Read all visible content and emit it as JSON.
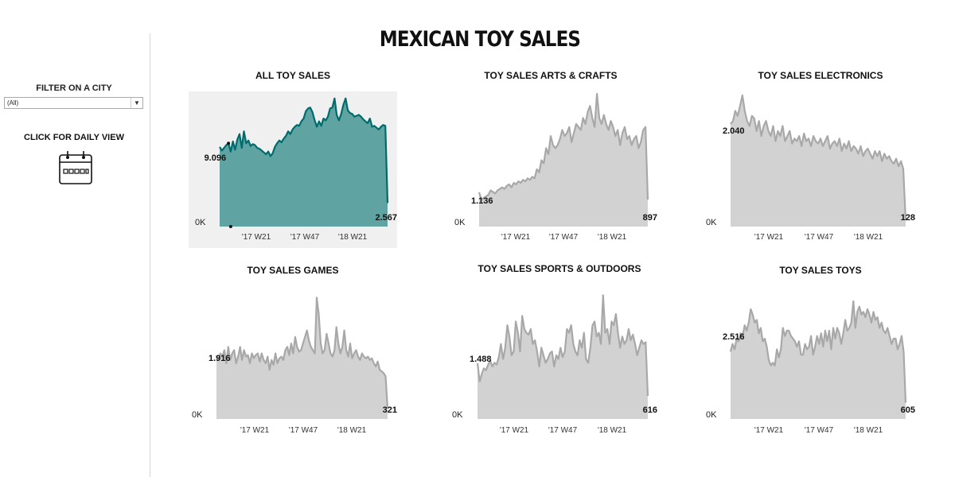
{
  "title": "MEXICAN TOY SALES",
  "sidebar": {
    "filter_title": "FILTER ON A CITY",
    "filter_value": "(All)",
    "daily_view_label": "CLICK FOR DAILY VIEW",
    "calendar_icon": "calendar-icon"
  },
  "colors": {
    "highlight_fill": "#5fa3a2",
    "highlight_line": "#006b6b",
    "muted_fill": "#d2d2d2",
    "muted_line": "#a8a8a8",
    "panel_bg": "#f0f0f0"
  },
  "chart_data": [
    {
      "type": "area",
      "title": "ALL TOY SALES",
      "highlighted": true,
      "x_ticks": [
        "'17 W21",
        "'17 W47",
        "'18 W21"
      ],
      "y_min_label": "0K",
      "start_label": "9.096",
      "end_label": "2.567",
      "ylim": [
        0,
        14500
      ],
      "values": [
        8700,
        8300,
        8600,
        8900,
        9096,
        8200,
        9300,
        8400,
        9500,
        10100,
        8600,
        10400,
        9100,
        9400,
        8800,
        9000,
        8900,
        8600,
        8500,
        8300,
        8100,
        7900,
        8200,
        7700,
        8000,
        8700,
        9100,
        9400,
        9200,
        9600,
        9900,
        10400,
        10100,
        10600,
        10900,
        11100,
        11000,
        11500,
        11800,
        12600,
        12900,
        13000,
        12500,
        11600,
        10900,
        11500,
        11000,
        11800,
        11600,
        12000,
        12900,
        13000,
        14000,
        12200,
        11600,
        12300,
        13300,
        14000,
        12700,
        12400,
        12300,
        12000,
        12100,
        12200,
        12000,
        11700,
        11500,
        11300,
        11800,
        10900,
        11000,
        10800,
        10600,
        10900,
        11100,
        11000,
        2567
      ]
    },
    {
      "type": "area",
      "title": "TOY SALES ARTS & CRAFTS",
      "x_ticks": [
        "'17 W21",
        "'17 W47",
        "'18 W21"
      ],
      "y_min_label": "0K",
      "start_label": "1.136",
      "end_label": "897",
      "ylim": [
        0,
        4400
      ],
      "values": [
        1136,
        900,
        950,
        1000,
        1050,
        1200,
        1150,
        1100,
        1200,
        1250,
        1300,
        1250,
        1350,
        1400,
        1300,
        1450,
        1400,
        1500,
        1450,
        1550,
        1500,
        1600,
        1550,
        1650,
        1600,
        1900,
        1800,
        2200,
        2100,
        2600,
        2400,
        3000,
        2700,
        2600,
        2700,
        2900,
        3200,
        3000,
        3100,
        3300,
        2800,
        3100,
        3400,
        3300,
        3200,
        3600,
        3400,
        3800,
        4000,
        3600,
        3300,
        4400,
        3600,
        3400,
        3700,
        3400,
        3200,
        3500,
        3300,
        3000,
        3200,
        2700,
        3100,
        3300,
        2900,
        3000,
        2700,
        2900,
        3000,
        2600,
        2800,
        3200,
        3300,
        897
      ]
    },
    {
      "type": "area",
      "title": "TOY SALES ELECTRONICS",
      "x_ticks": [
        "'17 W21",
        "'17 W47",
        "'18 W21"
      ],
      "y_min_label": "0K",
      "start_label": "2.040",
      "end_label": "128",
      "ylim": [
        0,
        2640
      ],
      "values": [
        2040,
        2100,
        2300,
        2200,
        2400,
        2610,
        2300,
        2100,
        2000,
        2200,
        2150,
        1900,
        2100,
        1800,
        2000,
        2100,
        1900,
        1800,
        2000,
        1700,
        1900,
        1800,
        2000,
        1700,
        1800,
        1900,
        1650,
        1750,
        1700,
        1800,
        1600,
        1850,
        1700,
        1750,
        1600,
        1800,
        1700,
        1650,
        1750,
        1600,
        1700,
        1800,
        1550,
        1650,
        1700,
        1600,
        1750,
        1500,
        1650,
        1550,
        1700,
        1500,
        1600,
        1550,
        1450,
        1600,
        1400,
        1500,
        1550,
        1450,
        1350,
        1500,
        1400,
        1500,
        1300,
        1450,
        1350,
        1400,
        1300,
        1250,
        1350,
        1200,
        1300,
        1150,
        128
      ]
    },
    {
      "type": "area",
      "title": "TOY SALES GAMES",
      "x_ticks": [
        "'17 W21",
        "'17 W47",
        "'18 W21"
      ],
      "y_min_label": "0K",
      "start_label": "1.916",
      "end_label": "321",
      "ylim": [
        0,
        4000
      ],
      "values": [
        1916,
        1800,
        2000,
        1900,
        2100,
        1700,
        2200,
        1800,
        2000,
        2100,
        1700,
        1900,
        2200,
        1800,
        2100,
        1900,
        1950,
        1700,
        2000,
        1850,
        1950,
        2000,
        1750,
        2000,
        1800,
        1700,
        1900,
        1500,
        1800,
        1650,
        2000,
        1700,
        1850,
        1900,
        1800,
        2100,
        2200,
        1950,
        2300,
        2000,
        2500,
        2200,
        2050,
        2100,
        2300,
        2500,
        2700,
        2400,
        2200,
        2100,
        2000,
        3700,
        3200,
        2300,
        2000,
        2100,
        2600,
        2300,
        2000,
        1900,
        2100,
        2800,
        2300,
        2000,
        2200,
        2700,
        2100,
        1900,
        2300,
        1850,
        2000,
        2100,
        1900,
        1800,
        2000,
        1900,
        1850,
        1900,
        1800,
        1850,
        1700,
        1600,
        1750,
        1500,
        1450,
        1400,
        1300,
        321
      ]
    },
    {
      "type": "area",
      "title": "TOY SALES SPORTS & OUTDOORS",
      "x_ticks": [
        "'17 W21",
        "'17 W47",
        "'18 W21"
      ],
      "y_min_label": "0K",
      "start_label": "1.488",
      "end_label": "616",
      "ylim": [
        0,
        3500
      ],
      "values": [
        1488,
        1000,
        1200,
        1350,
        1300,
        1450,
        1550,
        1400,
        1500,
        1450,
        1650,
        2000,
        1600,
        1900,
        2500,
        2200,
        1700,
        1800,
        2600,
        2300,
        1800,
        2750,
        2400,
        2300,
        2250,
        2400,
        2000,
        2100,
        1800,
        1400,
        1900,
        1700,
        1500,
        1600,
        1750,
        1800,
        1400,
        1700,
        1600,
        1900,
        1650,
        1800,
        2400,
        2300,
        2500,
        2000,
        1800,
        1700,
        2100,
        1900,
        2300,
        1600,
        1500,
        1900,
        2500,
        2600,
        2200,
        2300,
        2000,
        3300,
        2300,
        2400,
        2000,
        2600,
        2500,
        2800,
        2300,
        1900,
        2200,
        2000,
        2100,
        2400,
        2100,
        2250,
        2000,
        1700,
        1900,
        2100,
        2000,
        2050,
        616
      ]
    },
    {
      "type": "area",
      "title": "TOY SALES TOYS",
      "x_ticks": [
        "'17 W21",
        "'17 W47",
        "'18 W21"
      ],
      "y_min_label": "0K",
      "start_label": "2.516",
      "end_label": "605",
      "ylim": [
        0,
        4900
      ],
      "values": [
        2516,
        2800,
        2600,
        3000,
        2900,
        3200,
        3100,
        3500,
        3300,
        3600,
        4100,
        3900,
        3600,
        3700,
        3200,
        3400,
        2900,
        3000,
        2700,
        2200,
        2000,
        2100,
        2000,
        2600,
        2300,
        2600,
        3400,
        3100,
        3300,
        3300,
        3100,
        3000,
        2900,
        2700,
        2900,
        2400,
        2400,
        2800,
        2600,
        2700,
        3100,
        2400,
        2700,
        3100,
        2800,
        3200,
        2700,
        3300,
        2900,
        3300,
        2600,
        3400,
        3000,
        3400,
        3200,
        2800,
        3200,
        3700,
        3300,
        3400,
        3600,
        4400,
        3400,
        4000,
        4200,
        3900,
        4000,
        3800,
        4100,
        3900,
        3600,
        4000,
        3700,
        3800,
        3400,
        3600,
        3300,
        3200,
        3400,
        3100,
        2800,
        3000,
        3000,
        2600,
        2800,
        3100,
        2500,
        605
      ]
    }
  ]
}
